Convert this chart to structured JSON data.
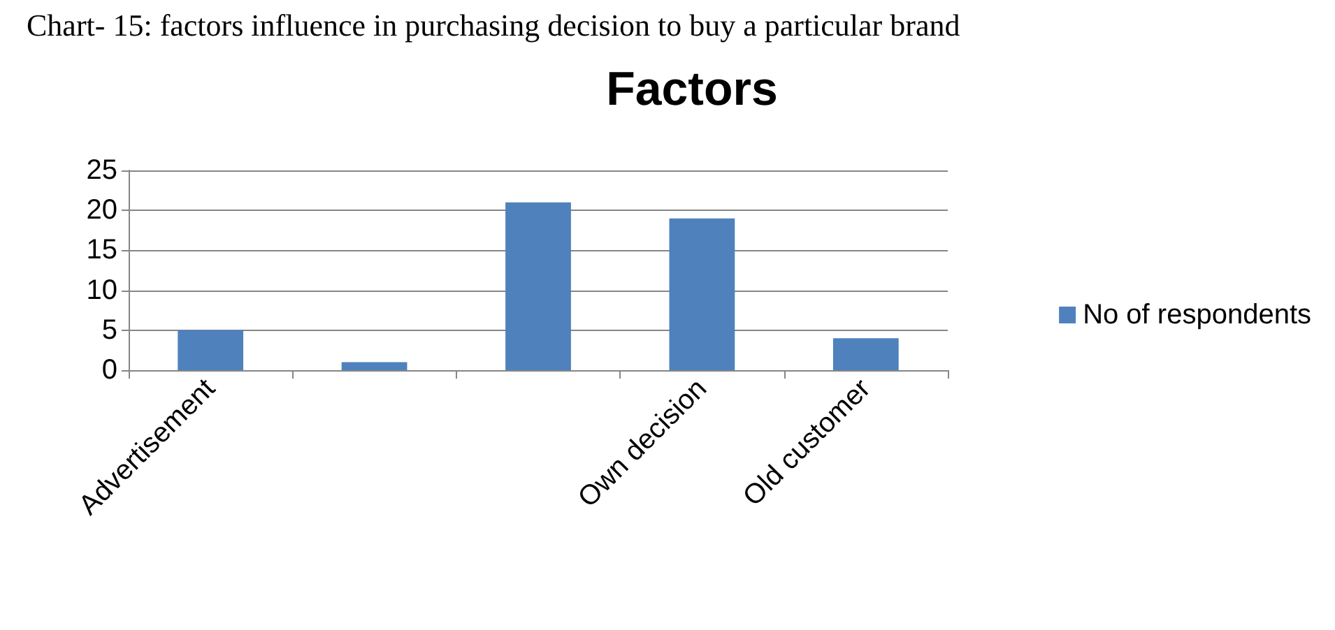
{
  "chart_data": {
    "type": "bar",
    "title": "Factors",
    "annotations": [
      "Chart- 15: factors influence in purchasing decision to buy a particular brand"
    ],
    "categories": [
      "Advertisement",
      null,
      null,
      "Own decision",
      "Old customer"
    ],
    "series": [
      {
        "name": "No of respondents",
        "color": "#4f81bd",
        "values": [
          5,
          1,
          21,
          19,
          4
        ]
      }
    ],
    "ylim": [
      0,
      25
    ],
    "yticks": [
      0,
      5,
      10,
      15,
      20,
      25
    ],
    "grid": "y",
    "legend": "right"
  }
}
